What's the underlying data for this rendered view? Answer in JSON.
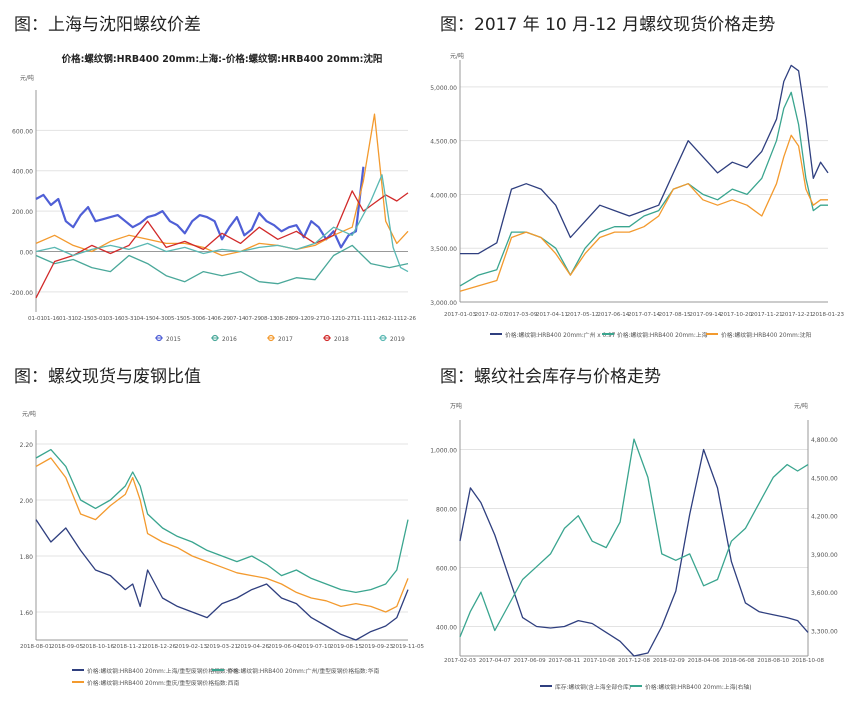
{
  "headings": {
    "p1": "图：上海与沈阳螺纹价差",
    "p2": "图：2017 年 10 月-12 月螺纹现货价格走势",
    "p3": "图：螺纹现货与废钢比值",
    "p4": "图：螺纹社会库存与价格走势"
  },
  "colors": {
    "s2015": "#4f5fd6",
    "s2016": "#4aa89a",
    "s2017": "#f39a2e",
    "s2018": "#d12a2a",
    "s2019": "#5ab8b3",
    "navy": "#2f3f7f",
    "teal": "#3aa58f",
    "orange": "#f39a2e",
    "grid": "#e3e3e3",
    "axis": "#999999",
    "text": "#555555"
  },
  "chart_data": [
    {
      "type": "line",
      "title": "价格:螺纹钢:HRB400 20mm:上海:-价格:螺纹钢:HRB400 20mm:沈阳",
      "unit_label": "元/吨",
      "ylim": [
        -300,
        800
      ],
      "yticks": [
        600,
        400,
        200,
        0,
        -200
      ],
      "ytick_labels": [
        "600.00",
        "400.00",
        "200.00",
        "0.00",
        "-200.00"
      ],
      "xtick_labels": [
        "01-01",
        "01-16",
        "01-31",
        "02-15",
        "03-01",
        "03-16",
        "03-31",
        "04-15",
        "04-30",
        "05-15",
        "05-30",
        "06-14",
        "06-29",
        "07-14",
        "07-29",
        "08-13",
        "08-28",
        "09-12",
        "09-27",
        "10-12",
        "10-27",
        "11-11",
        "11-26",
        "12-11",
        "12-26"
      ],
      "legend": [
        "2015",
        "2016",
        "2017",
        "2018",
        "2019"
      ],
      "series": [
        {
          "name": "2015",
          "color_key": "s2015",
          "x": [
            0,
            0.02,
            0.04,
            0.06,
            0.08,
            0.1,
            0.12,
            0.14,
            0.16,
            0.18,
            0.2,
            0.22,
            0.24,
            0.26,
            0.28,
            0.3,
            0.32,
            0.34,
            0.36,
            0.38,
            0.4,
            0.42,
            0.44,
            0.46,
            0.48,
            0.5,
            0.52,
            0.54,
            0.56,
            0.58,
            0.6,
            0.62,
            0.64,
            0.66,
            0.68,
            0.7,
            0.72,
            0.74,
            0.76,
            0.78,
            0.8,
            0.82,
            0.84,
            0.86,
            0.88
          ],
          "y": [
            260,
            280,
            230,
            260,
            150,
            120,
            180,
            220,
            150,
            160,
            170,
            180,
            150,
            120,
            140,
            170,
            180,
            200,
            150,
            130,
            90,
            150,
            180,
            170,
            150,
            60,
            120,
            170,
            80,
            110,
            190,
            150,
            130,
            100,
            120,
            130,
            70,
            150,
            120,
            60,
            100,
            20,
            80,
            100,
            420
          ]
        },
        {
          "name": "2016",
          "color_key": "s2016",
          "x": [
            0,
            0.05,
            0.1,
            0.15,
            0.2,
            0.25,
            0.3,
            0.35,
            0.4,
            0.45,
            0.5,
            0.55,
            0.6,
            0.65,
            0.7,
            0.75,
            0.8,
            0.85,
            0.9,
            0.95,
            1
          ],
          "y": [
            -20,
            -60,
            -40,
            -80,
            -100,
            -20,
            -60,
            -120,
            -150,
            -100,
            -120,
            -100,
            -150,
            -160,
            -130,
            -140,
            -20,
            30,
            -60,
            -80,
            -60
          ]
        },
        {
          "name": "2017",
          "color_key": "s2017",
          "x": [
            0,
            0.05,
            0.1,
            0.15,
            0.2,
            0.25,
            0.3,
            0.35,
            0.4,
            0.45,
            0.5,
            0.55,
            0.6,
            0.65,
            0.7,
            0.75,
            0.8,
            0.85,
            0.88,
            0.91,
            0.94,
            0.97,
            1
          ],
          "y": [
            40,
            80,
            30,
            0,
            50,
            80,
            60,
            40,
            40,
            20,
            -20,
            0,
            40,
            30,
            10,
            30,
            80,
            120,
            350,
            680,
            150,
            40,
            100
          ]
        },
        {
          "name": "2018",
          "color_key": "s2018",
          "x": [
            0,
            0.05,
            0.1,
            0.15,
            0.2,
            0.25,
            0.3,
            0.35,
            0.4,
            0.45,
            0.5,
            0.55,
            0.6,
            0.65,
            0.7,
            0.75,
            0.8,
            0.85,
            0.88,
            0.91,
            0.94,
            0.97,
            1
          ],
          "y": [
            -230,
            -50,
            -20,
            30,
            -10,
            30,
            150,
            20,
            50,
            10,
            90,
            40,
            120,
            60,
            100,
            40,
            80,
            300,
            200,
            240,
            280,
            250,
            290
          ]
        },
        {
          "name": "2019",
          "color_key": "s2019",
          "x": [
            0,
            0.05,
            0.1,
            0.15,
            0.2,
            0.25,
            0.3,
            0.35,
            0.4,
            0.45,
            0.5,
            0.55,
            0.6,
            0.65,
            0.7,
            0.75,
            0.8,
            0.85,
            0.9,
            0.93,
            0.96,
            0.98,
            1
          ],
          "y": [
            0,
            20,
            -20,
            10,
            30,
            10,
            40,
            0,
            20,
            -10,
            10,
            0,
            20,
            30,
            10,
            40,
            120,
            80,
            250,
            380,
            20,
            -80,
            -100
          ]
        }
      ]
    },
    {
      "type": "line",
      "unit_label": "元/吨",
      "ylim": [
        3000,
        5250
      ],
      "yticks": [
        5000,
        4500,
        4000,
        3500,
        3000
      ],
      "ytick_labels": [
        "5,000.00",
        "4,500.00",
        "4,000.00",
        "3,500.00",
        "3,000.00"
      ],
      "xtick_labels": [
        "2017-01-03",
        "2017-02-07",
        "2017-03-09",
        "2017-04-11",
        "2017-05-12",
        "2017-06-14",
        "2017-07-14",
        "2017-08-15",
        "2017-09-14",
        "2017-10-20",
        "2017-11-21",
        "2017-12-21",
        "2018-01-23"
      ],
      "legend": [
        "价格:螺纹钢:HRB400 20mm:广州 x 0.97",
        "价格:螺纹钢:HRB400 20mm:上海",
        "价格:螺纹钢:HRB400 20mm:沈阳"
      ],
      "series": [
        {
          "name": "价格:螺纹钢:HRB400 20mm:广州 x 0.97",
          "color_key": "navy",
          "x": [
            0,
            0.05,
            0.1,
            0.14,
            0.18,
            0.22,
            0.26,
            0.3,
            0.34,
            0.38,
            0.42,
            0.46,
            0.5,
            0.54,
            0.58,
            0.62,
            0.66,
            0.7,
            0.74,
            0.78,
            0.82,
            0.86,
            0.88,
            0.9,
            0.92,
            0.94,
            0.96,
            0.98,
            1
          ],
          "y": [
            3450,
            3450,
            3550,
            4050,
            4100,
            4050,
            3900,
            3600,
            3750,
            3900,
            3850,
            3800,
            3850,
            3900,
            4200,
            4500,
            4350,
            4200,
            4300,
            4250,
            4400,
            4700,
            5050,
            5200,
            5150,
            4700,
            4150,
            4300,
            4200
          ]
        },
        {
          "name": "价格:螺纹钢:HRB400 20mm:上海",
          "color_key": "teal",
          "x": [
            0,
            0.05,
            0.1,
            0.14,
            0.18,
            0.22,
            0.26,
            0.3,
            0.34,
            0.38,
            0.42,
            0.46,
            0.5,
            0.54,
            0.58,
            0.62,
            0.66,
            0.7,
            0.74,
            0.78,
            0.82,
            0.86,
            0.88,
            0.9,
            0.92,
            0.94,
            0.96,
            0.98,
            1
          ],
          "y": [
            3150,
            3250,
            3300,
            3650,
            3650,
            3600,
            3500,
            3250,
            3500,
            3650,
            3700,
            3700,
            3800,
            3850,
            4050,
            4100,
            4000,
            3950,
            4050,
            4000,
            4150,
            4500,
            4800,
            4950,
            4650,
            4150,
            3850,
            3900,
            3900
          ]
        },
        {
          "name": "价格:螺纹钢:HRB400 20mm:沈阳",
          "color_key": "orange",
          "x": [
            0,
            0.05,
            0.1,
            0.14,
            0.18,
            0.22,
            0.26,
            0.3,
            0.34,
            0.38,
            0.42,
            0.46,
            0.5,
            0.54,
            0.58,
            0.62,
            0.66,
            0.7,
            0.74,
            0.78,
            0.82,
            0.86,
            0.88,
            0.9,
            0.92,
            0.94,
            0.96,
            0.98,
            1
          ],
          "y": [
            3100,
            3150,
            3200,
            3600,
            3650,
            3600,
            3450,
            3250,
            3450,
            3600,
            3650,
            3650,
            3700,
            3800,
            4050,
            4100,
            3950,
            3900,
            3950,
            3900,
            3800,
            4100,
            4350,
            4550,
            4450,
            4050,
            3900,
            3950,
            3950
          ]
        }
      ]
    },
    {
      "type": "line",
      "unit_label": "元/吨",
      "ylim": [
        1.5,
        2.25
      ],
      "yticks": [
        2.2,
        2.0,
        1.8,
        1.6
      ],
      "ytick_labels": [
        "2.20",
        "2.00",
        "1.80",
        "1.60"
      ],
      "xtick_labels": [
        "2018-08-01",
        "2018-09-05",
        "2018-10-16",
        "2018-11-21",
        "2018-12-26",
        "2019-02-13",
        "2019-03-21",
        "2019-04-26",
        "2019-06-04",
        "2019-07-10",
        "2019-08-15",
        "2019-09-23",
        "2019-11-05"
      ],
      "legend": [
        "价格:螺纹钢:HRB400 20mm:上海/重型废钢价格指数:华东",
        "价格:螺纹钢:HRB400 20mm:广州/重型废钢价格指数:华南",
        "价格:螺纹钢:HRB400 20mm:重庆/重型废钢价格指数:西南"
      ],
      "series": [
        {
          "name": "价格:螺纹钢:HRB400 20mm:上海/重型废钢价格指数:华东",
          "color_key": "navy",
          "x": [
            0,
            0.04,
            0.08,
            0.12,
            0.16,
            0.2,
            0.24,
            0.26,
            0.28,
            0.3,
            0.34,
            0.38,
            0.42,
            0.46,
            0.5,
            0.54,
            0.58,
            0.62,
            0.66,
            0.7,
            0.74,
            0.78,
            0.82,
            0.86,
            0.9,
            0.94,
            0.97,
            1
          ],
          "y": [
            1.93,
            1.85,
            1.9,
            1.82,
            1.75,
            1.73,
            1.68,
            1.7,
            1.62,
            1.75,
            1.65,
            1.62,
            1.6,
            1.58,
            1.63,
            1.65,
            1.68,
            1.7,
            1.65,
            1.63,
            1.58,
            1.55,
            1.52,
            1.5,
            1.53,
            1.55,
            1.58,
            1.68
          ]
        },
        {
          "name": "价格:螺纹钢:HRB400 20mm:广州/重型废钢价格指数:华南",
          "color_key": "teal",
          "x": [
            0,
            0.04,
            0.08,
            0.12,
            0.16,
            0.2,
            0.24,
            0.26,
            0.28,
            0.3,
            0.34,
            0.38,
            0.42,
            0.46,
            0.5,
            0.54,
            0.58,
            0.62,
            0.66,
            0.7,
            0.74,
            0.78,
            0.82,
            0.86,
            0.9,
            0.94,
            0.97,
            1
          ],
          "y": [
            2.15,
            2.18,
            2.12,
            2.0,
            1.97,
            2.0,
            2.05,
            2.1,
            2.05,
            1.95,
            1.9,
            1.87,
            1.85,
            1.82,
            1.8,
            1.78,
            1.8,
            1.77,
            1.73,
            1.75,
            1.72,
            1.7,
            1.68,
            1.67,
            1.68,
            1.7,
            1.75,
            1.93
          ]
        },
        {
          "name": "价格:螺纹钢:HRB400 20mm:重庆/重型废钢价格指数:西南",
          "color_key": "orange",
          "x": [
            0,
            0.04,
            0.08,
            0.12,
            0.16,
            0.2,
            0.24,
            0.26,
            0.28,
            0.3,
            0.34,
            0.38,
            0.42,
            0.46,
            0.5,
            0.54,
            0.58,
            0.62,
            0.66,
            0.7,
            0.74,
            0.78,
            0.82,
            0.86,
            0.9,
            0.94,
            0.97,
            1
          ],
          "y": [
            2.12,
            2.15,
            2.08,
            1.95,
            1.93,
            1.98,
            2.02,
            2.08,
            2.0,
            1.88,
            1.85,
            1.83,
            1.8,
            1.78,
            1.76,
            1.74,
            1.73,
            1.72,
            1.7,
            1.67,
            1.65,
            1.64,
            1.62,
            1.63,
            1.62,
            1.6,
            1.62,
            1.72
          ]
        }
      ]
    },
    {
      "type": "line",
      "unit_label_left": "万吨",
      "unit_label_right": "元/吨",
      "ylim_left": [
        300,
        1100
      ],
      "yticks_left": [
        1000,
        800,
        600,
        400
      ],
      "ytick_labels_left": [
        "1,000.00",
        "800.00",
        "600.00",
        "400.00"
      ],
      "ylim_right": [
        3100,
        4950
      ],
      "yticks_right": [
        4800,
        4500,
        4200,
        3900,
        3600,
        3300
      ],
      "ytick_labels_right": [
        "4,800.00",
        "4,500.00",
        "4,200.00",
        "3,900.00",
        "3,600.00",
        "3,300.00"
      ],
      "xtick_labels": [
        "2017-02-03",
        "2017-04-07",
        "2017-06-09",
        "2017-08-11",
        "2017-10-08",
        "2017-12-08",
        "2018-02-09",
        "2018-04-06",
        "2018-06-08",
        "2018-08-10",
        "2018-10-08"
      ],
      "legend": [
        "库存:螺纹钢(含上海全部仓库)",
        "价格:螺纹钢:HRB400 20mm:上海(右轴)"
      ],
      "series": [
        {
          "name": "库存:螺纹钢(含上海全部仓库)",
          "axis": "left",
          "color_key": "navy",
          "x": [
            0,
            0.03,
            0.06,
            0.1,
            0.14,
            0.18,
            0.22,
            0.26,
            0.3,
            0.34,
            0.38,
            0.42,
            0.46,
            0.5,
            0.54,
            0.58,
            0.62,
            0.66,
            0.7,
            0.74,
            0.78,
            0.82,
            0.86,
            0.9,
            0.94,
            0.97,
            1
          ],
          "y": [
            690,
            870,
            820,
            710,
            570,
            430,
            400,
            395,
            400,
            420,
            410,
            380,
            350,
            300,
            310,
            400,
            520,
            780,
            1000,
            870,
            620,
            480,
            450,
            440,
            430,
            420,
            380
          ]
        },
        {
          "name": "价格:螺纹钢:HRB400 20mm:上海(右轴)",
          "axis": "right",
          "color_key": "teal",
          "x": [
            0,
            0.03,
            0.06,
            0.1,
            0.14,
            0.18,
            0.22,
            0.26,
            0.3,
            0.34,
            0.38,
            0.42,
            0.46,
            0.5,
            0.54,
            0.58,
            0.62,
            0.66,
            0.7,
            0.74,
            0.78,
            0.82,
            0.86,
            0.9,
            0.94,
            0.97,
            1
          ],
          "y": [
            3250,
            3450,
            3600,
            3300,
            3500,
            3700,
            3800,
            3900,
            4100,
            4200,
            4000,
            3950,
            4150,
            4800,
            4500,
            3900,
            3850,
            3900,
            3650,
            3700,
            4000,
            4100,
            4300,
            4500,
            4600,
            4550,
            4600
          ]
        }
      ]
    }
  ]
}
